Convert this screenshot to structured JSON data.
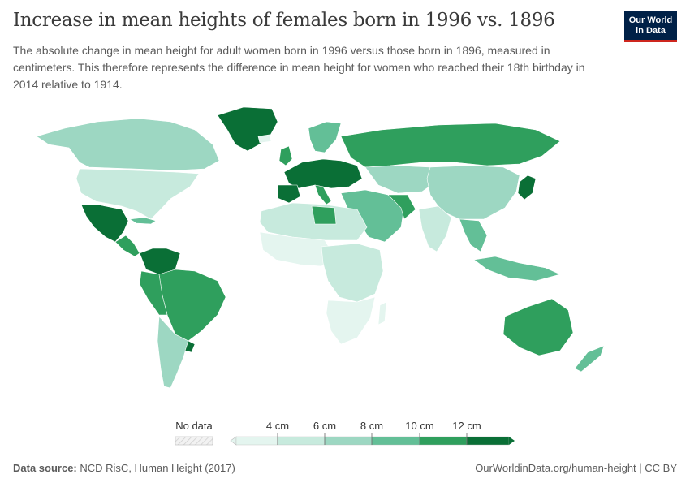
{
  "header": {
    "title": "Increase in mean heights of females born in 1996 vs. 1896",
    "subtitle": "The absolute change in mean height for adult women born in 1996 versus those born in 1896, measured in centimeters. This therefore represents the difference in mean height for women who reached their 18th birthday in 2014 relative to 1914."
  },
  "logo": {
    "line1": "Our World",
    "line2": "in Data"
  },
  "legend": {
    "no_data_label": "No data",
    "ticks": [
      "4 cm",
      "6 cm",
      "8 cm",
      "10 cm",
      "12 cm"
    ],
    "colors": [
      "#e4f5ef",
      "#c7eadd",
      "#9dd7c2",
      "#63bf97",
      "#2f9f5d",
      "#0a6f36"
    ]
  },
  "footer": {
    "source_label": "Data source:",
    "source_text": "NCD RisC, Human Height (2017)",
    "url_text": "OurWorldinData.org/human-height | CC BY"
  }
}
